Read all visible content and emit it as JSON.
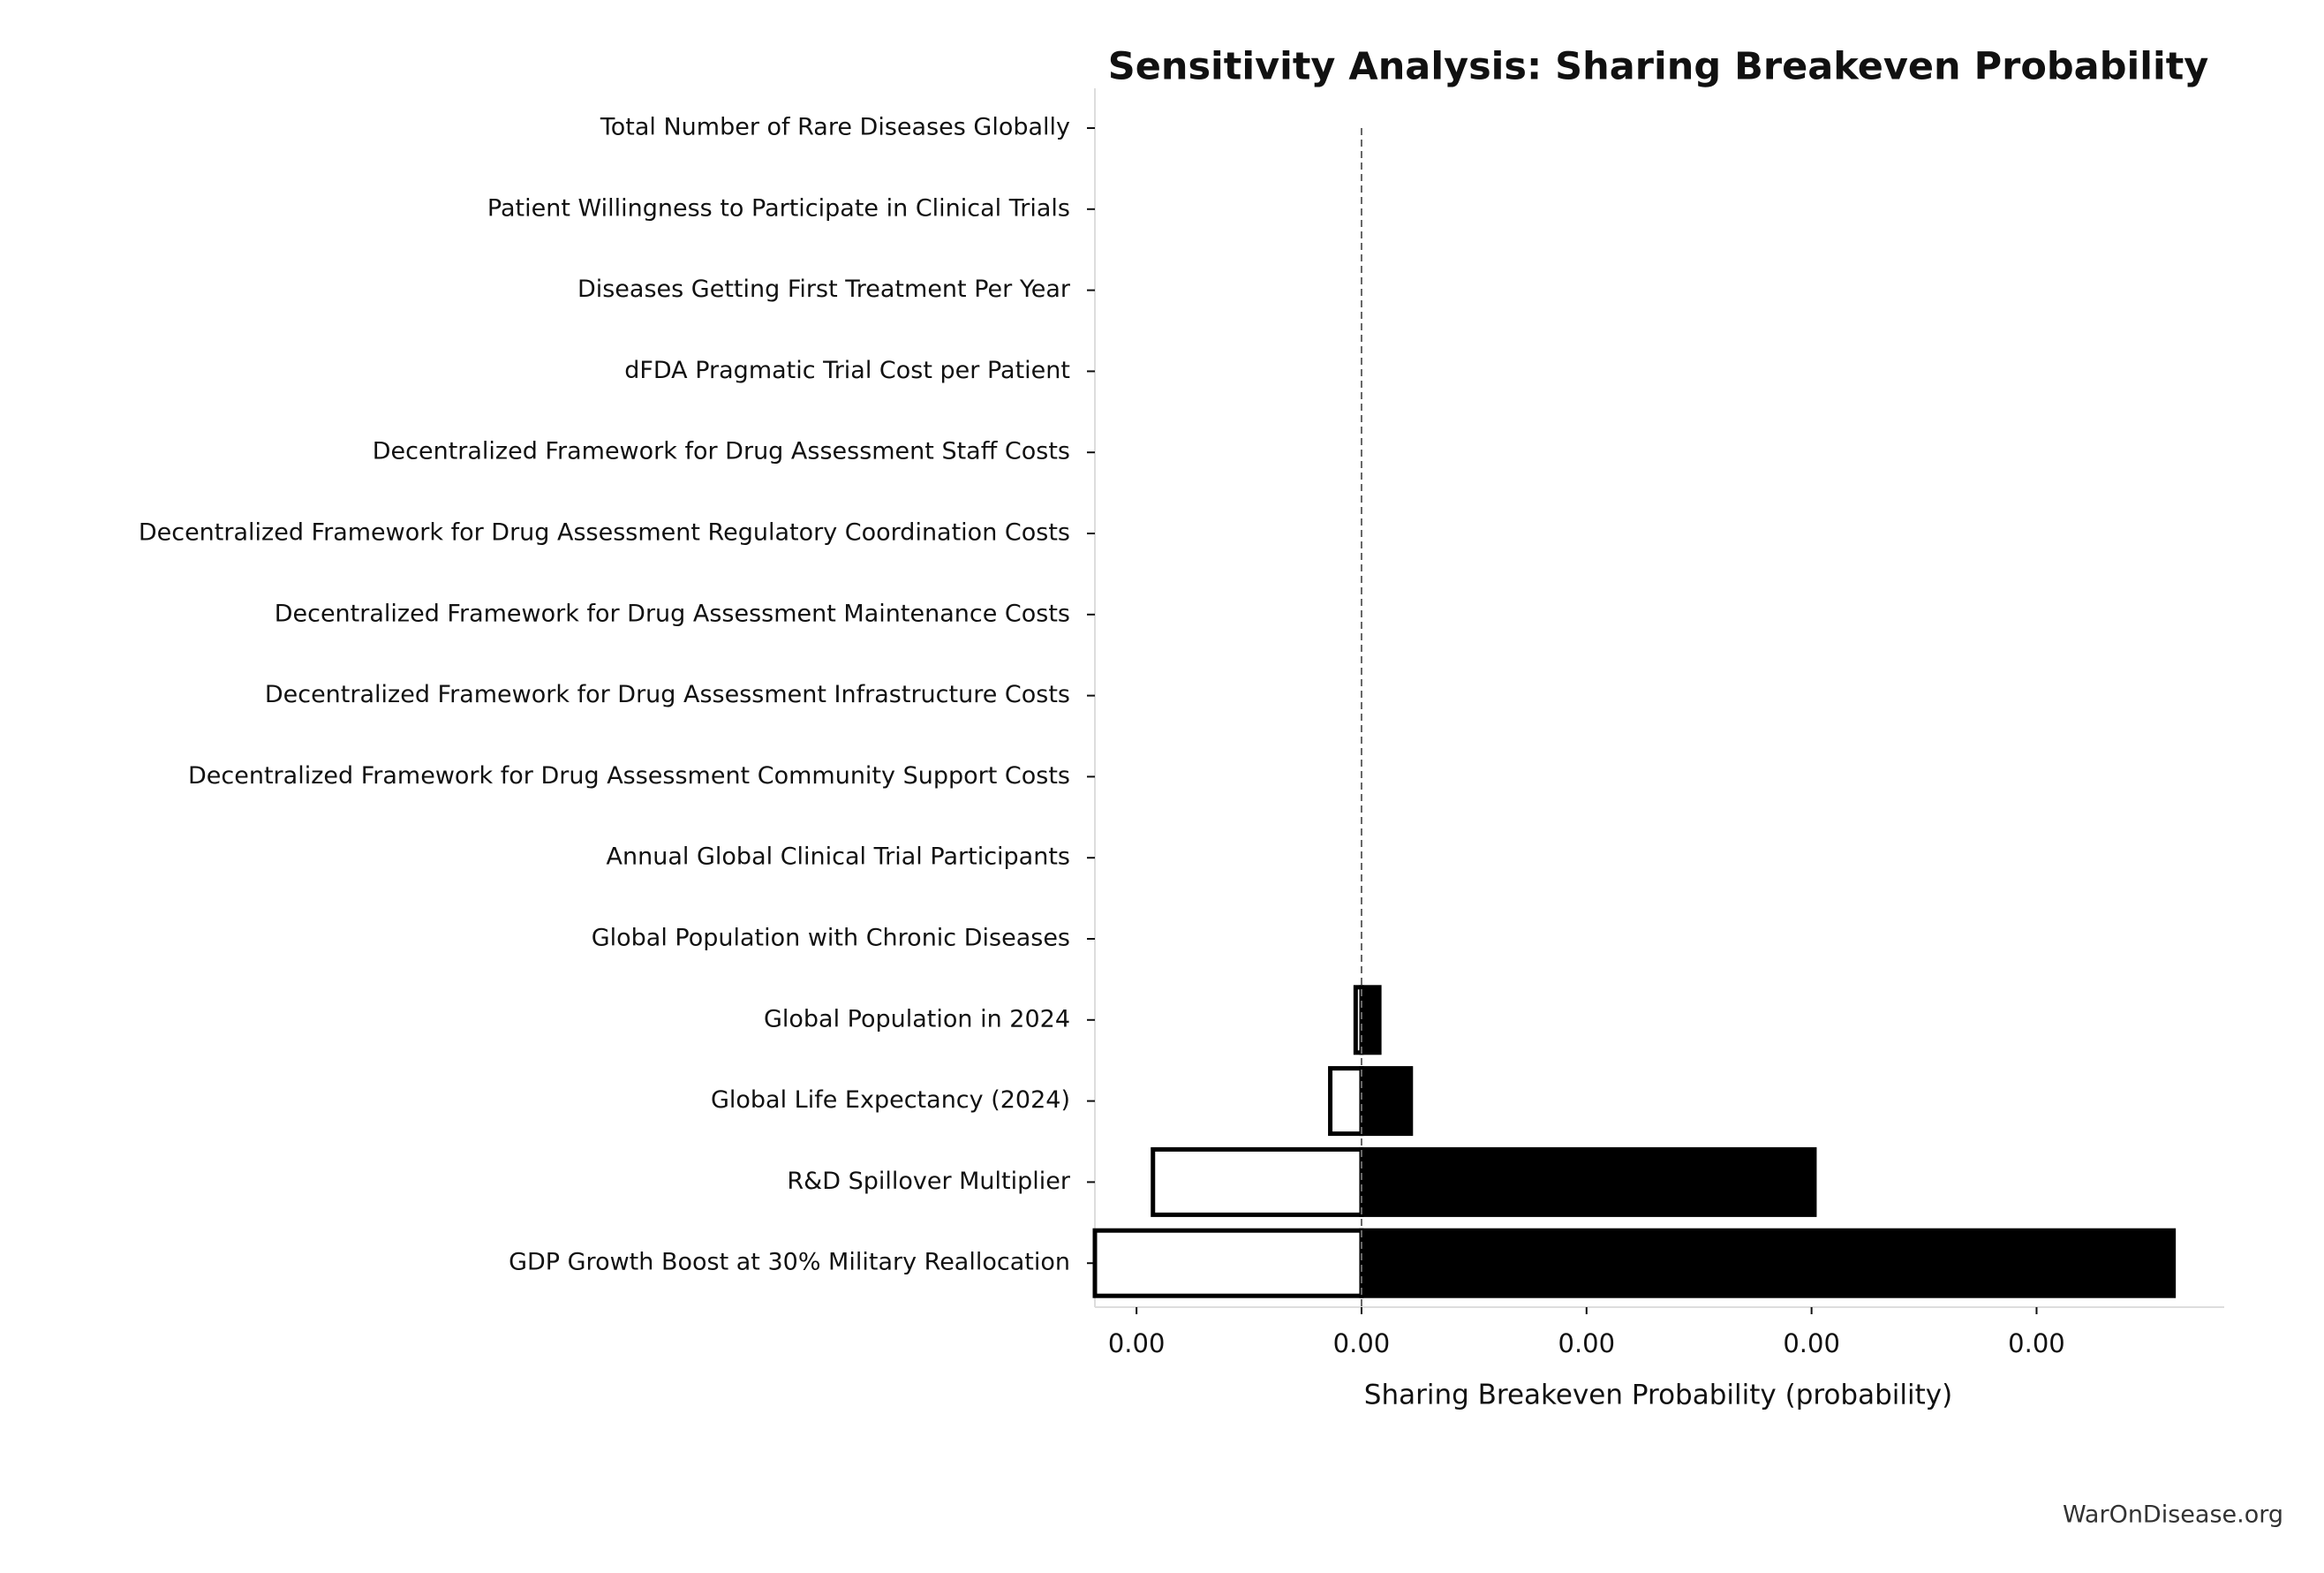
{
  "chart_data": {
    "type": "tornado",
    "title": "Sensitivity Analysis: Sharing Breakeven Probability",
    "xlabel": "Sharing Breakeven Probability (probability)",
    "watermark": "WarOnDisease.org",
    "categories": [
      "Total Number of Rare Diseases Globally",
      "Patient Willingness to Participate in Clinical Trials",
      "Diseases Getting First Treatment Per Year",
      "dFDA Pragmatic Trial Cost per Patient",
      "Decentralized Framework for Drug Assessment Staff Costs",
      "Decentralized Framework for Drug Assessment Regulatory Coordination Costs",
      "Decentralized Framework for Drug Assessment Maintenance Costs",
      "Decentralized Framework for Drug Assessment Infrastructure Costs",
      "Decentralized Framework for Drug Assessment Community Support Costs",
      "Annual Global Clinical Trial Participants",
      "Global Population with Chronic Diseases",
      "Global Population in 2024",
      "Global Life Expectancy (2024)",
      "R&D Spillover Multiplier",
      "GDP Growth Boost at 30% Military Reallocation"
    ],
    "baseline": 0.0001,
    "low": [
      0.0001,
      0.0001,
      0.0001,
      0.0001,
      0.0001,
      0.0001,
      0.0001,
      0.0001,
      0.0001,
      0.0001,
      0.0001,
      9.74e-05,
      8.61e-05,
      7.3e-06,
      -1.85e-05
    ],
    "high": [
      0.0001,
      0.0001,
      0.0001,
      0.0001,
      0.0001,
      0.0001,
      0.0001,
      0.0001,
      0.0001,
      0.0001,
      0.0001,
      0.0001079,
      0.0001219,
      0.0003013,
      0.0004609
    ],
    "low_color": "#ffffff",
    "high_color": "#000000",
    "xlim": [
      -1.85e-05,
      0.0004834
    ],
    "xticks": [
      {
        "value": 0,
        "label": "0.00"
      },
      {
        "value": 0.0001,
        "label": "0.00"
      },
      {
        "value": 0.0002,
        "label": "0.00"
      },
      {
        "value": 0.0003,
        "label": "0.00"
      },
      {
        "value": 0.0004,
        "label": "0.00"
      }
    ]
  }
}
